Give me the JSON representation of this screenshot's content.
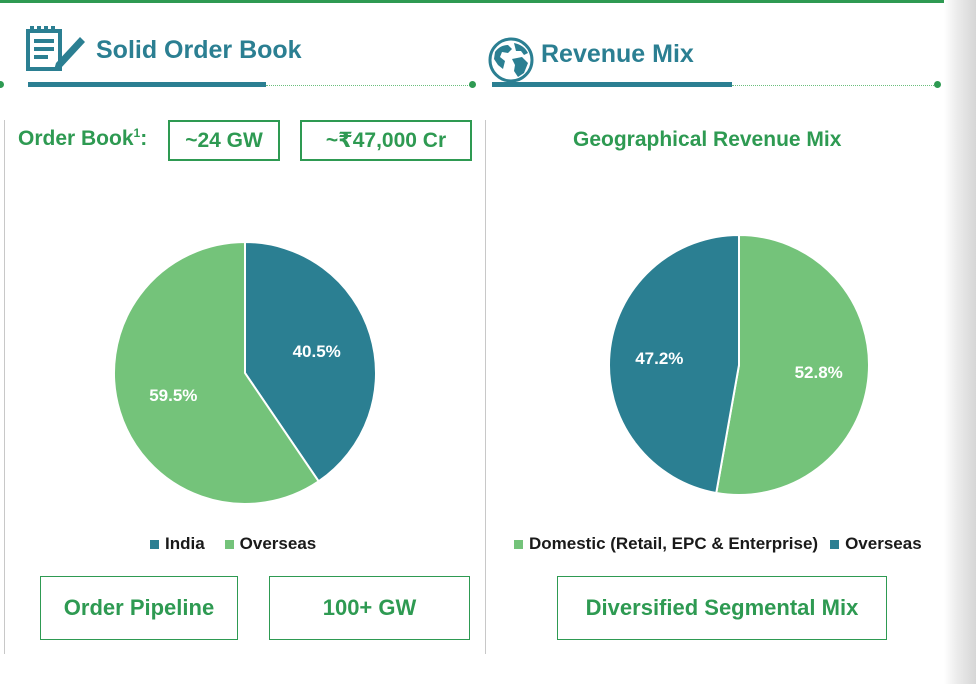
{
  "left": {
    "title": "Solid Order Book",
    "icon": "notepad-pen-icon",
    "order_book_label": "Order Book",
    "order_book_sup": "1",
    "order_book_colon": ":",
    "gw_box": "~24 GW",
    "cr_box": "~₹47,000 Cr",
    "pipeline_label": "Order Pipeline",
    "pipeline_value": "100+ GW"
  },
  "right": {
    "title": "Revenue Mix",
    "icon": "globe-icon",
    "subtitle": "Geographical Revenue Mix",
    "bottom_box": "Diversified Segmental Mix"
  },
  "colors": {
    "teal": "#2b7f92",
    "green": "#74c37a",
    "dark_green": "#2e9a52"
  },
  "chart_data": [
    {
      "type": "pie",
      "title": "",
      "series": [
        {
          "name": "India",
          "value": 40.5,
          "label": "40.5%",
          "color": "#2b7f92"
        },
        {
          "name": "Overseas",
          "value": 59.5,
          "label": "59.5%",
          "color": "#74c37a"
        }
      ],
      "legend": [
        "India",
        "Overseas"
      ],
      "legend_position": "bottom"
    },
    {
      "type": "pie",
      "title": "Geographical Revenue Mix",
      "series": [
        {
          "name": "Domestic (Retail, EPC & Enterprise)",
          "value": 52.8,
          "label": "52.8%",
          "color": "#74c37a"
        },
        {
          "name": "Overseas",
          "value": 47.2,
          "label": "47.2%",
          "color": "#2b7f92"
        }
      ],
      "legend": [
        "Domestic (Retail, EPC & Enterprise)",
        "Overseas"
      ],
      "legend_position": "bottom"
    }
  ]
}
